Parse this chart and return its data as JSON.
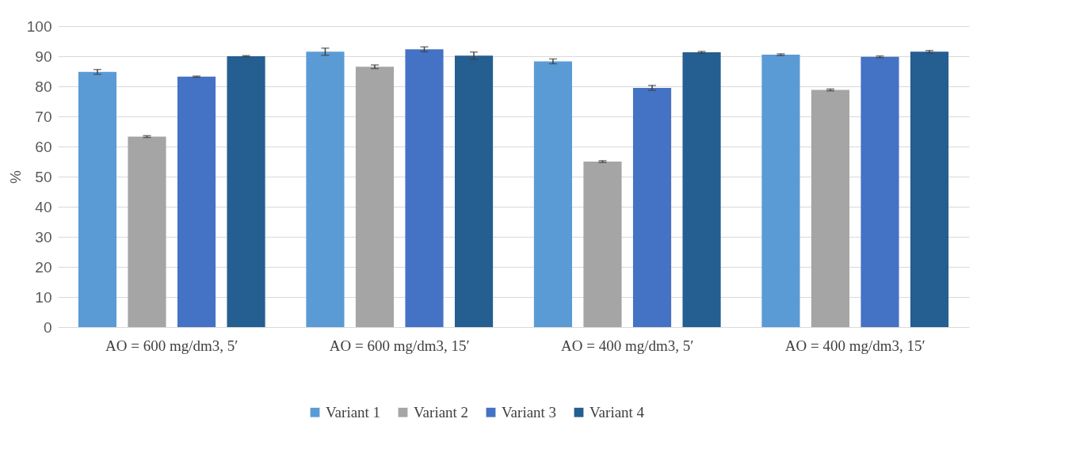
{
  "chart_data": {
    "type": "bar",
    "ylabel": "%",
    "categories": [
      "AO = 600 mg/dm3, 5′",
      "AO = 600 mg/dm3, 15′",
      "AO = 400 mg/dm3, 5′",
      "AO = 400 mg/dm3, 15′"
    ],
    "ylim": [
      0,
      100
    ],
    "yticks": [
      0,
      10,
      20,
      30,
      40,
      50,
      60,
      70,
      80,
      90,
      100
    ],
    "grid": "y",
    "legend": "bottom",
    "series": [
      {
        "name": "Variant 1",
        "color": "#5b9bd5",
        "values": [
          84.8,
          91.5,
          88.3,
          90.5
        ],
        "errors": [
          0.8,
          1.2,
          0.8,
          0.3
        ]
      },
      {
        "name": "Variant 2",
        "color": "#a5a5a5",
        "values": [
          63.3,
          86.5,
          55.0,
          78.8
        ],
        "errors": [
          0.3,
          0.6,
          0.3,
          0.3
        ]
      },
      {
        "name": "Variant 3",
        "color": "#4472c4",
        "values": [
          83.2,
          92.3,
          79.5,
          89.8
        ],
        "errors": [
          0.2,
          0.8,
          0.8,
          0.3
        ]
      },
      {
        "name": "Variant 4",
        "color": "#255e91",
        "values": [
          90.0,
          90.2,
          91.3,
          91.5
        ],
        "errors": [
          0.2,
          1.2,
          0.3,
          0.4
        ]
      }
    ]
  }
}
